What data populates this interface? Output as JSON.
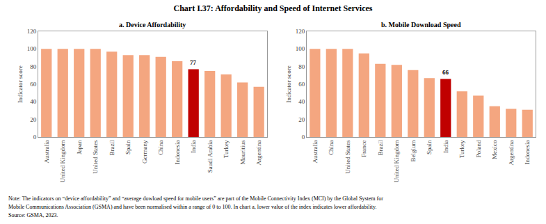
{
  "title": "Chart I.37: Affordability and Speed of Internet Services",
  "notes": [
    "Note: The indicators on “device affordability” and “average dowload speed for mobile users” are part of the Mobile Connectivity Index (MCI) by the Global System for",
    "Mobile Communications Association (GSMA) and have been normalised within a range of 0 to 100. In chart a, lower value of the index indicates lower affordability.",
    "Source: GSMA, 2023."
  ],
  "chart_data": [
    {
      "type": "bar",
      "title": "a. Device Affordability",
      "ylabel": "Indicator score",
      "categories": [
        "Australia",
        "United Kingdom",
        "Japan",
        "United States",
        "Brazil",
        "Spain",
        "Germany",
        "China",
        "Indonesia",
        "India",
        "Saudi Arabia",
        "Turkey",
        "Mauritius",
        "Argentina"
      ],
      "values": [
        100,
        100,
        100,
        100,
        97,
        93,
        93,
        91,
        86,
        77,
        75,
        71,
        62,
        57
      ],
      "colors": [
        "#F4A680",
        "#F4A680",
        "#F4A680",
        "#F4A680",
        "#F4A680",
        "#F4A680",
        "#F4A680",
        "#F4A680",
        "#F4A680",
        "#C00000",
        "#F4A680",
        "#F4A680",
        "#F4A680",
        "#F4A680"
      ],
      "ylim": [
        0,
        120
      ],
      "yticks": [
        0,
        20,
        40,
        60,
        80,
        100,
        120
      ],
      "grid": false,
      "annotations": [
        {
          "category": "India",
          "text": "77"
        }
      ]
    },
    {
      "type": "bar",
      "title": "b. Mobile Download Speed",
      "ylabel": "Indicator score",
      "categories": [
        "Australia",
        "China",
        "United States",
        "France",
        "Brazil",
        "United Kingdom",
        "Belgium",
        "Spain",
        "India",
        "Turkey",
        "Poland",
        "Mexico",
        "Argentina",
        "Indonesia"
      ],
      "values": [
        100,
        100,
        100,
        95,
        83,
        82,
        76,
        67,
        66,
        52,
        47,
        35,
        32,
        31
      ],
      "colors": [
        "#F4A680",
        "#F4A680",
        "#F4A680",
        "#F4A680",
        "#F4A680",
        "#F4A680",
        "#F4A680",
        "#F4A680",
        "#C00000",
        "#F4A680",
        "#F4A680",
        "#F4A680",
        "#F4A680",
        "#F4A680"
      ],
      "ylim": [
        0,
        120
      ],
      "yticks": [
        0,
        20,
        40,
        60,
        80,
        100,
        120
      ],
      "grid": false,
      "annotations": [
        {
          "category": "India",
          "text": "66"
        }
      ]
    }
  ]
}
